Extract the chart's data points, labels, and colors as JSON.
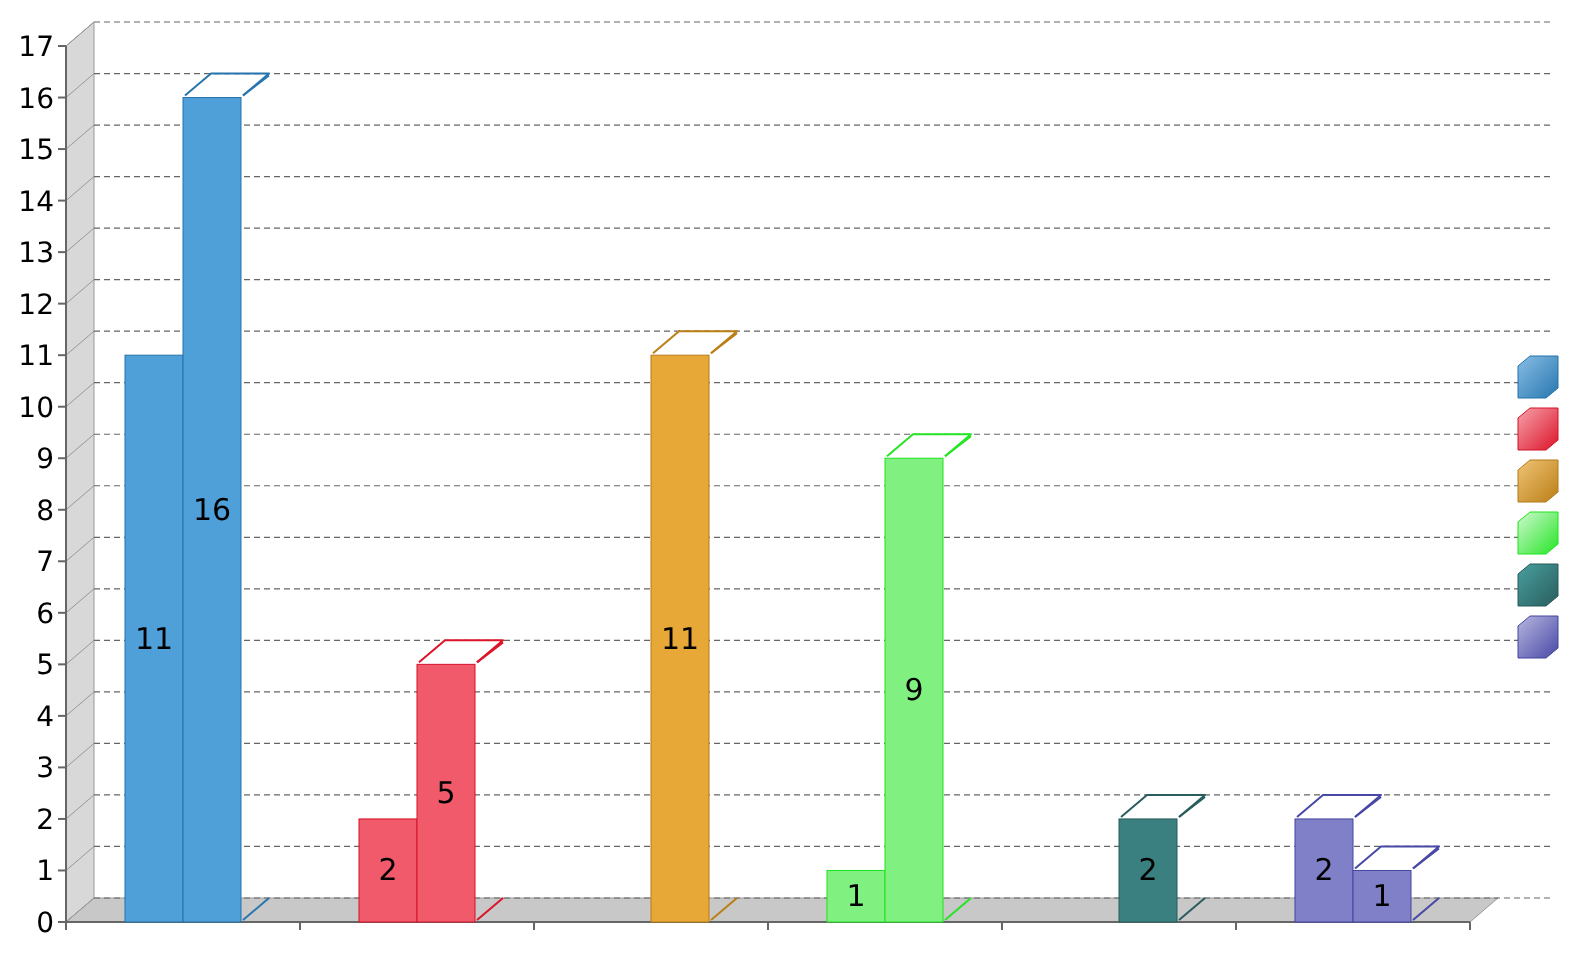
{
  "chart_data": {
    "type": "bar",
    "categories": [
      null,
      null,
      null,
      null,
      null,
      null
    ],
    "series": [
      {
        "colors": [
          "#4f9fd8",
          "#f05a6a",
          "#e8a838",
          "#80f080",
          "#3a8080",
          "#8080c8"
        ],
        "values": [
          11,
          2,
          null,
          1,
          null,
          2
        ]
      },
      {
        "colors": [
          "#4f9fd8",
          "#f05a6a",
          "#e8a838",
          "#80f080",
          "#3a8080",
          "#8080c8"
        ],
        "values": [
          16,
          5,
          11,
          9,
          2,
          1
        ]
      }
    ],
    "ylim": [
      0,
      17
    ],
    "yticks": [
      0,
      1,
      2,
      3,
      4,
      5,
      6,
      7,
      8,
      9,
      10,
      11,
      12,
      13,
      14,
      15,
      16,
      17
    ],
    "grid": "y",
    "data_labels": true
  }
}
